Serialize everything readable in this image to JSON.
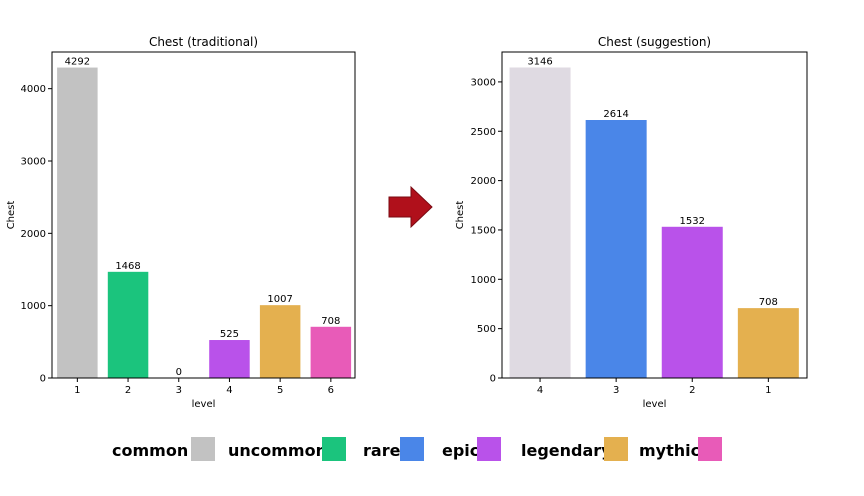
{
  "colors": {
    "common": "#c2c2c2",
    "uncommon": "#1bc47d",
    "rare": "#4a86e8",
    "epic": "#b952ea",
    "legendary": "#e4b04f",
    "mythic": "#e85bb8",
    "suggestion_level4": "#dfdae2",
    "arrow": "#b0101b"
  },
  "arrow_icon": "right-arrow-icon",
  "chart_data": [
    {
      "type": "bar",
      "title": "Chest (traditional)",
      "xlabel": "level",
      "ylabel": "Chest",
      "categories": [
        "1",
        "2",
        "3",
        "4",
        "5",
        "6"
      ],
      "values": [
        4292,
        1468,
        0,
        525,
        1007,
        708
      ],
      "bar_colors": [
        "#c2c2c2",
        "#1bc47d",
        "#4a86e8",
        "#b952ea",
        "#e4b04f",
        "#e85bb8"
      ],
      "ylim": [
        0,
        4507
      ],
      "yticks": [
        0,
        1000,
        2000,
        3000,
        4000
      ],
      "grid": false,
      "data_labels": true
    },
    {
      "type": "bar",
      "title": "Chest (suggestion)",
      "xlabel": "level",
      "ylabel": "Chest",
      "categories": [
        "4",
        "3",
        "2",
        "1"
      ],
      "values": [
        3146,
        2614,
        1532,
        708
      ],
      "bar_colors": [
        "#dfdae2",
        "#4a86e8",
        "#b952ea",
        "#e4b04f"
      ],
      "ylim": [
        0,
        3303
      ],
      "yticks": [
        0,
        500,
        1000,
        1500,
        2000,
        2500,
        3000
      ],
      "grid": false,
      "data_labels": true
    }
  ],
  "legend": [
    {
      "label": "common",
      "color": "#c2c2c2"
    },
    {
      "label": "uncommon",
      "color": "#1bc47d"
    },
    {
      "label": "rare",
      "color": "#4a86e8"
    },
    {
      "label": "epic",
      "color": "#b952ea"
    },
    {
      "label": "legendary",
      "color": "#e4b04f"
    },
    {
      "label": "mythic",
      "color": "#e85bb8"
    }
  ]
}
